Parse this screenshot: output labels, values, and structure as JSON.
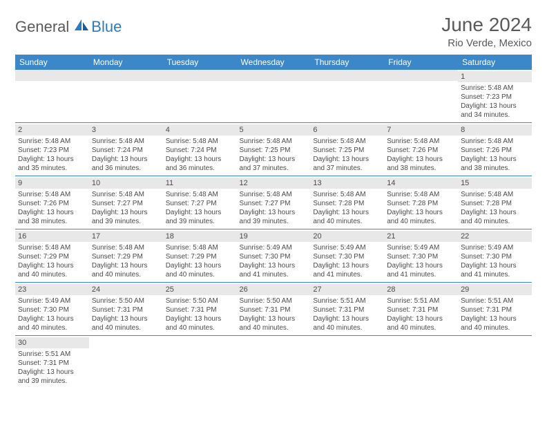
{
  "logo": {
    "general": "General",
    "blue": "Blue"
  },
  "title": "June 2024",
  "location": "Rio Verde, Mexico",
  "colors": {
    "header_bg": "#3b87c8",
    "header_text": "#ffffff",
    "daynum_bg": "#e8e8e8",
    "text": "#4a4a4a",
    "border": "#3b87c8",
    "logo_gray": "#5a5a5a",
    "logo_blue": "#2b7bbf"
  },
  "weekdays": [
    "Sunday",
    "Monday",
    "Tuesday",
    "Wednesday",
    "Thursday",
    "Friday",
    "Saturday"
  ],
  "weeks": [
    [
      null,
      null,
      null,
      null,
      null,
      null,
      {
        "n": "1",
        "sr": "5:48 AM",
        "ss": "7:23 PM",
        "dl": "13 hours and 34 minutes."
      }
    ],
    [
      {
        "n": "2",
        "sr": "5:48 AM",
        "ss": "7:23 PM",
        "dl": "13 hours and 35 minutes."
      },
      {
        "n": "3",
        "sr": "5:48 AM",
        "ss": "7:24 PM",
        "dl": "13 hours and 36 minutes."
      },
      {
        "n": "4",
        "sr": "5:48 AM",
        "ss": "7:24 PM",
        "dl": "13 hours and 36 minutes."
      },
      {
        "n": "5",
        "sr": "5:48 AM",
        "ss": "7:25 PM",
        "dl": "13 hours and 37 minutes."
      },
      {
        "n": "6",
        "sr": "5:48 AM",
        "ss": "7:25 PM",
        "dl": "13 hours and 37 minutes."
      },
      {
        "n": "7",
        "sr": "5:48 AM",
        "ss": "7:26 PM",
        "dl": "13 hours and 38 minutes."
      },
      {
        "n": "8",
        "sr": "5:48 AM",
        "ss": "7:26 PM",
        "dl": "13 hours and 38 minutes."
      }
    ],
    [
      {
        "n": "9",
        "sr": "5:48 AM",
        "ss": "7:26 PM",
        "dl": "13 hours and 38 minutes."
      },
      {
        "n": "10",
        "sr": "5:48 AM",
        "ss": "7:27 PM",
        "dl": "13 hours and 39 minutes."
      },
      {
        "n": "11",
        "sr": "5:48 AM",
        "ss": "7:27 PM",
        "dl": "13 hours and 39 minutes."
      },
      {
        "n": "12",
        "sr": "5:48 AM",
        "ss": "7:27 PM",
        "dl": "13 hours and 39 minutes."
      },
      {
        "n": "13",
        "sr": "5:48 AM",
        "ss": "7:28 PM",
        "dl": "13 hours and 40 minutes."
      },
      {
        "n": "14",
        "sr": "5:48 AM",
        "ss": "7:28 PM",
        "dl": "13 hours and 40 minutes."
      },
      {
        "n": "15",
        "sr": "5:48 AM",
        "ss": "7:28 PM",
        "dl": "13 hours and 40 minutes."
      }
    ],
    [
      {
        "n": "16",
        "sr": "5:48 AM",
        "ss": "7:29 PM",
        "dl": "13 hours and 40 minutes."
      },
      {
        "n": "17",
        "sr": "5:48 AM",
        "ss": "7:29 PM",
        "dl": "13 hours and 40 minutes."
      },
      {
        "n": "18",
        "sr": "5:48 AM",
        "ss": "7:29 PM",
        "dl": "13 hours and 40 minutes."
      },
      {
        "n": "19",
        "sr": "5:49 AM",
        "ss": "7:30 PM",
        "dl": "13 hours and 41 minutes."
      },
      {
        "n": "20",
        "sr": "5:49 AM",
        "ss": "7:30 PM",
        "dl": "13 hours and 41 minutes."
      },
      {
        "n": "21",
        "sr": "5:49 AM",
        "ss": "7:30 PM",
        "dl": "13 hours and 41 minutes."
      },
      {
        "n": "22",
        "sr": "5:49 AM",
        "ss": "7:30 PM",
        "dl": "13 hours and 41 minutes."
      }
    ],
    [
      {
        "n": "23",
        "sr": "5:49 AM",
        "ss": "7:30 PM",
        "dl": "13 hours and 40 minutes."
      },
      {
        "n": "24",
        "sr": "5:50 AM",
        "ss": "7:31 PM",
        "dl": "13 hours and 40 minutes."
      },
      {
        "n": "25",
        "sr": "5:50 AM",
        "ss": "7:31 PM",
        "dl": "13 hours and 40 minutes."
      },
      {
        "n": "26",
        "sr": "5:50 AM",
        "ss": "7:31 PM",
        "dl": "13 hours and 40 minutes."
      },
      {
        "n": "27",
        "sr": "5:51 AM",
        "ss": "7:31 PM",
        "dl": "13 hours and 40 minutes."
      },
      {
        "n": "28",
        "sr": "5:51 AM",
        "ss": "7:31 PM",
        "dl": "13 hours and 40 minutes."
      },
      {
        "n": "29",
        "sr": "5:51 AM",
        "ss": "7:31 PM",
        "dl": "13 hours and 40 minutes."
      }
    ],
    [
      {
        "n": "30",
        "sr": "5:51 AM",
        "ss": "7:31 PM",
        "dl": "13 hours and 39 minutes."
      },
      null,
      null,
      null,
      null,
      null,
      null
    ]
  ],
  "labels": {
    "sunrise": "Sunrise: ",
    "sunset": "Sunset: ",
    "daylight": "Daylight: "
  }
}
